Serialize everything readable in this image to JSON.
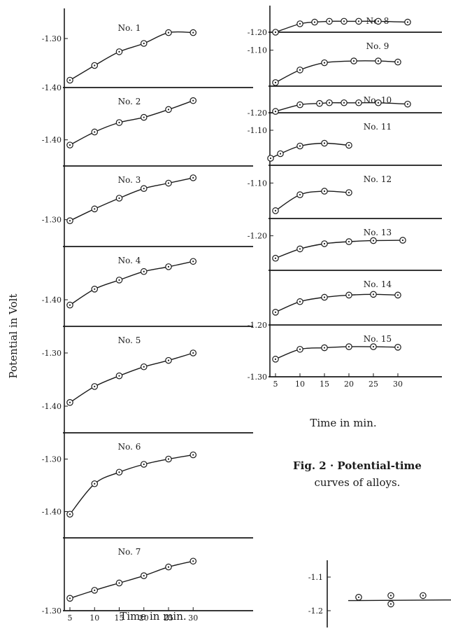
{
  "figure": {
    "caption_line1": "Fig. 2 · Potential-time",
    "caption_line2": "curves of alloys.",
    "ylabel": "Potential in Volt",
    "xlabel_left": "Time in min.",
    "xlabel_right": "Time in min."
  },
  "chart_data": [
    {
      "type": "line",
      "column": "left",
      "name": "No. 1",
      "ytick_labels": [
        "-1.30",
        "-1.40"
      ],
      "ytick_values": [
        -1.3,
        -1.4
      ],
      "ylim": [
        -1.4,
        -1.25
      ],
      "x": [
        5,
        10,
        15,
        20,
        25,
        30
      ],
      "y": [
        -1.385,
        -1.355,
        -1.327,
        -1.31,
        -1.288,
        -1.288
      ]
    },
    {
      "type": "line",
      "column": "left",
      "name": "No. 2",
      "ytick_labels": [
        "-1.40"
      ],
      "ytick_values": [
        -1.4
      ],
      "ylim": [
        -1.45,
        -1.3
      ],
      "x": [
        5,
        10,
        15,
        20,
        25,
        30
      ],
      "y": [
        -1.41,
        -1.385,
        -1.367,
        -1.357,
        -1.342,
        -1.325
      ]
    },
    {
      "type": "line",
      "column": "left",
      "name": "No. 3",
      "ytick_labels": [
        "-1.30"
      ],
      "ytick_values": [
        -1.3
      ],
      "ylim": [
        -1.35,
        -1.2
      ],
      "x": [
        5,
        10,
        15,
        20,
        25,
        30
      ],
      "y": [
        -1.302,
        -1.28,
        -1.26,
        -1.242,
        -1.232,
        -1.222
      ]
    },
    {
      "type": "line",
      "column": "left",
      "name": "No. 4",
      "ytick_labels": [
        "-1.40"
      ],
      "ytick_values": [
        -1.4
      ],
      "ylim": [
        -1.45,
        -1.3
      ],
      "x": [
        5,
        10,
        15,
        20,
        25,
        30
      ],
      "y": [
        -1.41,
        -1.38,
        -1.363,
        -1.347,
        -1.338,
        -1.328
      ]
    },
    {
      "type": "line",
      "column": "left",
      "name": "No. 5",
      "ytick_labels": [
        "-1.30",
        "-1.40"
      ],
      "ytick_values": [
        -1.3,
        -1.4
      ],
      "ylim": [
        -1.45,
        -1.25
      ],
      "x": [
        5,
        10,
        15,
        20,
        25,
        30
      ],
      "y": [
        -1.393,
        -1.363,
        -1.343,
        -1.326,
        -1.314,
        -1.3
      ]
    },
    {
      "type": "line",
      "column": "left",
      "name": "No. 6",
      "ytick_labels": [
        "-1.30",
        "-1.40"
      ],
      "ytick_values": [
        -1.3,
        -1.4
      ],
      "ylim": [
        -1.45,
        -1.25
      ],
      "x": [
        5,
        10,
        15,
        20,
        25,
        30
      ],
      "y": [
        -1.405,
        -1.347,
        -1.325,
        -1.31,
        -1.3,
        -1.292
      ]
    },
    {
      "type": "line",
      "column": "left",
      "name": "No. 7",
      "ytick_labels": [
        "-1.30"
      ],
      "ytick_values": [
        -1.3
      ],
      "ylim": [
        -1.3,
        -1.2
      ],
      "x": [
        5,
        10,
        15,
        20,
        25,
        30
      ],
      "y": [
        -1.283,
        -1.272,
        -1.262,
        -1.252,
        -1.24,
        -1.232
      ],
      "xtick_labels": [
        "5",
        "10",
        "15",
        "20",
        "25",
        "30"
      ],
      "xtick_values": [
        5,
        10,
        15,
        20,
        25,
        30
      ],
      "xlim": [
        0,
        35
      ]
    },
    {
      "type": "line",
      "column": "right",
      "name": "No. 8",
      "ytick_labels": [
        "-1.20"
      ],
      "ytick_values": [
        -1.2
      ],
      "ylim": [
        -1.2,
        -1.17
      ],
      "x": [
        5,
        10,
        13,
        16,
        19,
        22,
        26,
        32
      ],
      "y": [
        -1.2,
        -1.19,
        -1.188,
        -1.187,
        -1.187,
        -1.187,
        -1.187,
        -1.188
      ]
    },
    {
      "type": "line",
      "column": "right",
      "name": "No. 9",
      "ytick_labels": [
        "-1.10"
      ],
      "ytick_values": [
        -1.1
      ],
      "ylim": [
        -1.2,
        -1.05
      ],
      "x": [
        5,
        10,
        15,
        21,
        26,
        30
      ],
      "y": [
        -1.19,
        -1.155,
        -1.135,
        -1.13,
        -1.13,
        -1.133
      ]
    },
    {
      "type": "line",
      "column": "right",
      "name": "No. 10",
      "ytick_labels": [
        "-1.20"
      ],
      "ytick_values": [
        -1.2
      ],
      "ylim": [
        -1.2,
        -1.16
      ],
      "x": [
        5,
        10,
        14,
        16,
        19,
        22,
        26,
        32
      ],
      "y": [
        -1.198,
        -1.188,
        -1.186,
        -1.185,
        -1.185,
        -1.185,
        -1.185,
        -1.187
      ]
    },
    {
      "type": "line",
      "column": "right",
      "name": "No. 11",
      "ytick_labels": [
        "-1.10"
      ],
      "ytick_values": [
        -1.1
      ],
      "ylim": [
        -1.2,
        -1.05
      ],
      "x": [
        4,
        6,
        10,
        15,
        20
      ],
      "y": [
        -1.18,
        -1.167,
        -1.145,
        -1.137,
        -1.143
      ]
    },
    {
      "type": "line",
      "column": "right",
      "name": "No. 12",
      "ytick_labels": [
        "-1.10"
      ],
      "ytick_values": [
        -1.1
      ],
      "ylim": [
        -1.2,
        -1.05
      ],
      "x": [
        5,
        10,
        15,
        20
      ],
      "y": [
        -1.178,
        -1.133,
        -1.123,
        -1.127
      ]
    },
    {
      "type": "line",
      "column": "right",
      "name": "No. 13",
      "ytick_labels": [
        "-1.20"
      ],
      "ytick_values": [
        -1.2
      ],
      "ylim": [
        -1.3,
        -1.15
      ],
      "x": [
        5,
        10,
        15,
        20,
        25,
        31
      ],
      "y": [
        -1.265,
        -1.238,
        -1.223,
        -1.217,
        -1.214,
        -1.213
      ]
    },
    {
      "type": "line",
      "column": "right",
      "name": "No. 14",
      "ytick_labels": [],
      "ytick_values": [],
      "ylim": [
        -1.3,
        -1.15
      ],
      "x": [
        5,
        10,
        15,
        20,
        25,
        30
      ],
      "y": [
        -1.265,
        -1.236,
        -1.224,
        -1.218,
        -1.216,
        -1.218
      ]
    },
    {
      "type": "line",
      "column": "right",
      "name": "No. 15",
      "ytick_labels": [
        "-1.30",
        "-1.20"
      ],
      "ytick_values": [
        -1.3,
        -1.2
      ],
      "ylim": [
        -1.3,
        -1.2
      ],
      "x": [
        5,
        10,
        15,
        20,
        25,
        30
      ],
      "y": [
        -1.266,
        -1.247,
        -1.244,
        -1.242,
        -1.242,
        -1.243
      ],
      "xtick_labels": [
        "5",
        "10",
        "15",
        "20",
        "25",
        "30"
      ],
      "xtick_values": [
        5,
        10,
        15,
        20,
        25,
        30
      ],
      "xlim": [
        0,
        35
      ]
    },
    {
      "type": "scatter",
      "column": "corner",
      "name": "",
      "ytick_labels": [
        "-1.1",
        "-1.2"
      ],
      "ytick_values": [
        -1.1,
        -1.2
      ],
      "ylim": [
        -1.25,
        -1.05
      ],
      "x": [
        10,
        20,
        30,
        20
      ],
      "y": [
        -1.16,
        -1.155,
        -1.155,
        -1.18
      ]
    }
  ]
}
